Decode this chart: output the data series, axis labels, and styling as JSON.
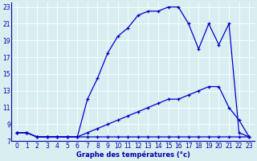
{
  "xlabel": "Graphe des températures (°c)",
  "background_color": "#d8eef0",
  "grid_color": "#b8d8e0",
  "line_color": "#0000cc",
  "xlim": [
    -0.5,
    23.5
  ],
  "ylim": [
    7,
    23.5
  ],
  "xticks": [
    0,
    1,
    2,
    3,
    4,
    5,
    6,
    7,
    8,
    9,
    10,
    11,
    12,
    13,
    14,
    15,
    16,
    17,
    18,
    19,
    20,
    21,
    22,
    23
  ],
  "yticks": [
    7,
    9,
    11,
    13,
    15,
    17,
    19,
    21,
    23
  ],
  "curve1_x": [
    0,
    1,
    2,
    3,
    4,
    5,
    6,
    7,
    8,
    9,
    10,
    11,
    12,
    13,
    14,
    15,
    16,
    17,
    18,
    19,
    20,
    21,
    22,
    23
  ],
  "curve1_y": [
    8,
    8,
    7.5,
    7.5,
    7.5,
    7.5,
    7.5,
    7.5,
    7.5,
    7.5,
    7.5,
    7.5,
    7.5,
    7.5,
    7.5,
    7.5,
    7.5,
    7.5,
    7.5,
    7.5,
    7.5,
    7.5,
    7.5,
    7.5
  ],
  "curve2_x": [
    0,
    1,
    2,
    3,
    4,
    5,
    6,
    7,
    8,
    9,
    10,
    11,
    12,
    13,
    14,
    15,
    16,
    17,
    18,
    19,
    20,
    21,
    22,
    23
  ],
  "curve2_y": [
    8,
    8,
    7.5,
    7.5,
    7.5,
    7.5,
    7.5,
    8,
    8.5,
    9,
    9.5,
    10,
    10.5,
    11,
    11.5,
    12,
    12,
    12.5,
    13,
    13.5,
    13.5,
    11,
    9.5,
    7.5
  ],
  "curve3_x": [
    0,
    1,
    2,
    3,
    4,
    5,
    6,
    7,
    8,
    9,
    10,
    11,
    12,
    13,
    14,
    15,
    16,
    17,
    18,
    19,
    20,
    21,
    22,
    23
  ],
  "curve3_y": [
    8,
    8,
    7.5,
    7.5,
    7.5,
    7.5,
    7.5,
    12,
    14.5,
    17.5,
    19.5,
    20.5,
    22,
    22.5,
    22.5,
    23,
    23,
    21,
    18,
    21,
    18.5,
    21,
    8,
    7.5
  ],
  "tick_fontsize": 5.5,
  "xlabel_fontsize": 6,
  "label_color": "#0000aa"
}
